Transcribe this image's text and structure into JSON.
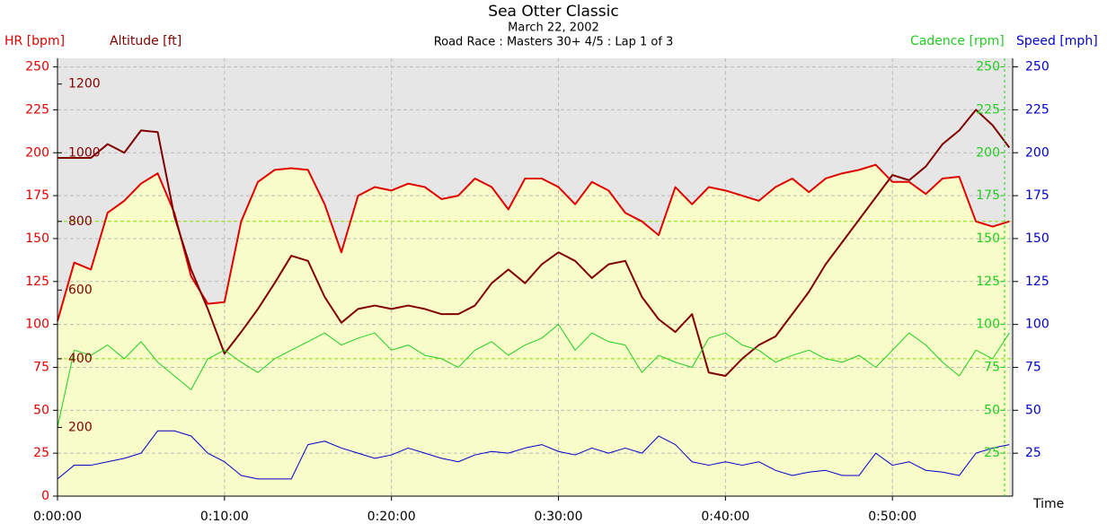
{
  "chart_data": {
    "type": "line",
    "title": "Sea Otter Classic",
    "subtitle": "March 22, 2002",
    "subtitle2": "Road Race : Masters 30+ 4/5 : Lap 1 of 3",
    "x_label": "Time",
    "x": [
      0,
      1,
      2,
      3,
      4,
      5,
      6,
      7,
      8,
      9,
      10,
      11,
      12,
      13,
      14,
      15,
      16,
      17,
      18,
      19,
      20,
      21,
      22,
      23,
      24,
      25,
      26,
      27,
      28,
      29,
      30,
      31,
      32,
      33,
      34,
      35,
      36,
      37,
      38,
      39,
      40,
      41,
      42,
      43,
      44,
      45,
      46,
      47,
      48,
      49,
      50,
      51,
      52,
      53,
      54,
      55,
      56,
      57
    ],
    "xlim": [
      0,
      57.2
    ],
    "xticks": [
      {
        "value": 0,
        "label": "0:00:00"
      },
      {
        "value": 10,
        "label": "0:10:00"
      },
      {
        "value": 20,
        "label": "0:20:00"
      },
      {
        "value": 30,
        "label": "0:30:00"
      },
      {
        "value": 40,
        "label": "0:40:00"
      },
      {
        "value": 50,
        "label": "0:50:00"
      }
    ],
    "grid": true,
    "axes": [
      {
        "label": "HR [bpm]",
        "color": "#e00000",
        "side": "left",
        "lim": [
          0,
          255
        ],
        "ticks": [
          0,
          25,
          50,
          75,
          100,
          125,
          150,
          175,
          200,
          225,
          250
        ]
      },
      {
        "label": "Altitude [ft]",
        "color": "#800000",
        "side": "left-inner",
        "lim": [
          0,
          1275
        ],
        "ticks": [
          200,
          400,
          600,
          800,
          1000,
          1200
        ]
      },
      {
        "label": "Cadence [rpm]",
        "color": "#22cc22",
        "side": "right-inner",
        "lim": [
          0,
          255
        ],
        "ticks": [
          25,
          50,
          75,
          100,
          125,
          150,
          175,
          200,
          225,
          250
        ]
      },
      {
        "label": "Speed [mph]",
        "color": "#0000cc",
        "side": "right",
        "lim": [
          0,
          255
        ],
        "ticks": [
          25,
          50,
          75,
          100,
          125,
          150,
          175,
          200,
          225,
          250
        ]
      }
    ],
    "reference_lines": {
      "axis": 2,
      "color": "#88dd00",
      "values": [
        80,
        160
      ]
    },
    "series": [
      {
        "axis": 0,
        "color": "#e00000",
        "fill": "#f8fcc8",
        "width": 2,
        "values": [
          102,
          136,
          132,
          165,
          172,
          182,
          188,
          165,
          128,
          112,
          113,
          160,
          183,
          190,
          191,
          190,
          170,
          142,
          175,
          180,
          178,
          182,
          180,
          173,
          175,
          185,
          180,
          167,
          185,
          185,
          180,
          170,
          183,
          178,
          165,
          160,
          152,
          180,
          170,
          180,
          178,
          175,
          172,
          180,
          185,
          177,
          185,
          188,
          190,
          193,
          183,
          183,
          176,
          185,
          186,
          160,
          157,
          160
        ]
      },
      {
        "axis": 1,
        "color": "#800000",
        "width": 2,
        "values": [
          985,
          985,
          985,
          1025,
          1000,
          1065,
          1060,
          815,
          660,
          545,
          415,
          478,
          545,
          620,
          700,
          685,
          580,
          505,
          545,
          555,
          545,
          555,
          545,
          530,
          530,
          555,
          620,
          660,
          620,
          675,
          710,
          685,
          635,
          675,
          685,
          580,
          515,
          478,
          530,
          360,
          350,
          400,
          440,
          465,
          530,
          595,
          675,
          740,
          805,
          870,
          935,
          920,
          960,
          1025,
          1065,
          1125,
          1080,
          1015
        ]
      },
      {
        "axis": 2,
        "color": "#22cc22",
        "width": 1,
        "values": [
          40,
          85,
          82,
          88,
          80,
          90,
          78,
          70,
          62,
          80,
          85,
          78,
          72,
          80,
          85,
          90,
          95,
          88,
          92,
          95,
          85,
          88,
          82,
          80,
          75,
          85,
          90,
          82,
          88,
          92,
          100,
          85,
          95,
          90,
          88,
          72,
          82,
          78,
          75,
          92,
          95,
          88,
          85,
          78,
          82,
          85,
          80,
          78,
          82,
          75,
          85,
          95,
          88,
          78,
          70,
          85,
          80,
          95
        ]
      },
      {
        "axis": 3,
        "color": "#0000cc",
        "width": 1,
        "values": [
          10,
          18,
          18,
          20,
          22,
          25,
          38,
          38,
          35,
          25,
          20,
          12,
          10,
          10,
          10,
          30,
          32,
          28,
          25,
          22,
          24,
          28,
          25,
          22,
          20,
          24,
          26,
          25,
          28,
          30,
          26,
          24,
          28,
          25,
          28,
          25,
          35,
          30,
          20,
          18,
          20,
          18,
          20,
          15,
          12,
          14,
          15,
          12,
          12,
          25,
          18,
          20,
          15,
          14,
          12,
          25,
          28,
          30
        ]
      }
    ]
  }
}
